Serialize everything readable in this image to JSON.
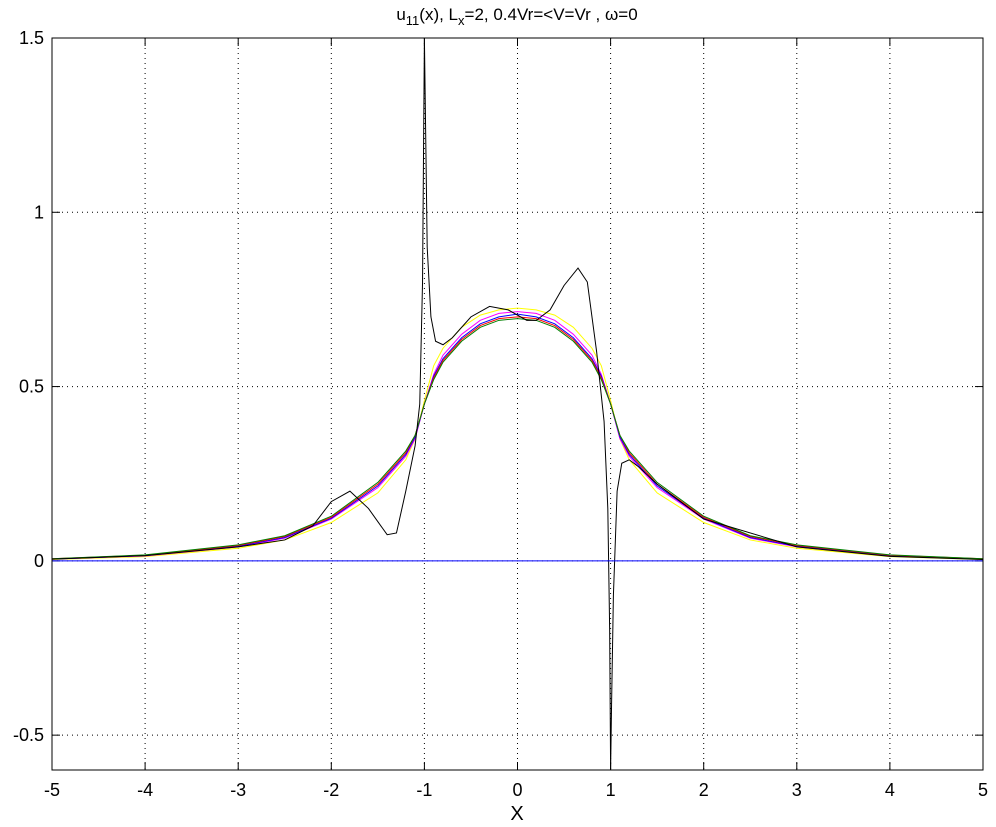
{
  "chart_data": {
    "type": "line",
    "title_parts": [
      "u",
      "11",
      "(x), L",
      "x",
      "=2, 0.4Vr=<V=Vr , ω=0"
    ],
    "title_subscripts": [
      false,
      true,
      false,
      true,
      false
    ],
    "x_label": "X",
    "xlim": [
      -5,
      5
    ],
    "ylim": [
      -0.6,
      1.5
    ],
    "xticks": [
      -5,
      -4,
      -3,
      -2,
      -1,
      0,
      1,
      2,
      3,
      4,
      5
    ],
    "yticks": [
      -0.5,
      0,
      0.5,
      1,
      1.5
    ],
    "grid": true,
    "x": [
      -5,
      -4,
      -3,
      -2.5,
      -2,
      -1.5,
      -1.2,
      -1.1,
      -1,
      -0.9,
      -0.8,
      -0.6,
      -0.4,
      -0.2,
      0,
      0.2,
      0.4,
      0.6,
      0.8,
      0.9,
      1,
      1.1,
      1.2,
      1.5,
      2,
      2.5,
      3,
      4,
      5
    ],
    "series": [
      {
        "color": "#ffff00",
        "values": [
          0.004,
          0.012,
          0.036,
          0.06,
          0.11,
          0.195,
          0.29,
          0.35,
          0.46,
          0.56,
          0.61,
          0.67,
          0.705,
          0.72,
          0.725,
          0.72,
          0.705,
          0.67,
          0.61,
          0.56,
          0.46,
          0.35,
          0.29,
          0.195,
          0.11,
          0.06,
          0.036,
          0.012,
          0.004
        ]
      },
      {
        "color": "#ff00ff",
        "values": [
          0.005,
          0.014,
          0.04,
          0.065,
          0.12,
          0.21,
          0.3,
          0.35,
          0.45,
          0.535,
          0.59,
          0.65,
          0.69,
          0.71,
          0.715,
          0.71,
          0.69,
          0.65,
          0.59,
          0.535,
          0.45,
          0.35,
          0.3,
          0.21,
          0.12,
          0.065,
          0.04,
          0.014,
          0.005
        ]
      },
      {
        "color": "#0000ff",
        "values": [
          0.005,
          0.015,
          0.042,
          0.067,
          0.122,
          0.215,
          0.305,
          0.355,
          0.45,
          0.53,
          0.58,
          0.64,
          0.68,
          0.7,
          0.708,
          0.7,
          0.68,
          0.64,
          0.58,
          0.53,
          0.45,
          0.355,
          0.305,
          0.215,
          0.122,
          0.067,
          0.042,
          0.015,
          0.005
        ]
      },
      {
        "color": "#ff0000",
        "values": [
          0.006,
          0.016,
          0.044,
          0.07,
          0.125,
          0.22,
          0.31,
          0.36,
          0.45,
          0.525,
          0.575,
          0.635,
          0.675,
          0.695,
          0.7,
          0.695,
          0.675,
          0.635,
          0.575,
          0.525,
          0.45,
          0.36,
          0.31,
          0.22,
          0.125,
          0.07,
          0.044,
          0.016,
          0.006
        ]
      },
      {
        "color": "#008000",
        "values": [
          0.006,
          0.017,
          0.046,
          0.072,
          0.128,
          0.225,
          0.315,
          0.36,
          0.45,
          0.52,
          0.57,
          0.63,
          0.67,
          0.69,
          0.695,
          0.69,
          0.67,
          0.63,
          0.57,
          0.52,
          0.45,
          0.36,
          0.315,
          0.225,
          0.128,
          0.072,
          0.046,
          0.017,
          0.006
        ]
      },
      {
        "color": "#000000",
        "x": [
          -5,
          -4,
          -3,
          -2.5,
          -2.2,
          -2,
          -1.8,
          -1.6,
          -1.4,
          -1.3,
          -1.2,
          -1.1,
          -1.05,
          -1.02,
          -1,
          -0.99,
          -0.97,
          -0.93,
          -0.88,
          -0.8,
          -0.7,
          -0.5,
          -0.3,
          -0.1,
          0.1,
          0.2,
          0.35,
          0.5,
          0.65,
          0.75,
          0.85,
          0.93,
          0.97,
          0.99,
          1,
          1.01,
          1.03,
          1.07,
          1.12,
          1.2,
          1.3,
          1.5,
          2,
          3,
          4,
          5
        ],
        "values": [
          0.005,
          0.015,
          0.04,
          0.06,
          0.1,
          0.17,
          0.2,
          0.15,
          0.075,
          0.08,
          0.2,
          0.33,
          0.45,
          0.8,
          1.5,
          1.3,
          0.9,
          0.7,
          0.63,
          0.62,
          0.64,
          0.7,
          0.73,
          0.72,
          0.69,
          0.69,
          0.72,
          0.79,
          0.84,
          0.8,
          0.6,
          0.4,
          0.15,
          -0.2,
          -0.6,
          -0.42,
          -0.1,
          0.2,
          0.28,
          0.29,
          0.27,
          0.22,
          0.12,
          0.04,
          0.013,
          0.004
        ]
      },
      {
        "color": "#0000ff",
        "x": [
          -5,
          5
        ],
        "values": [
          0,
          0
        ]
      }
    ]
  }
}
